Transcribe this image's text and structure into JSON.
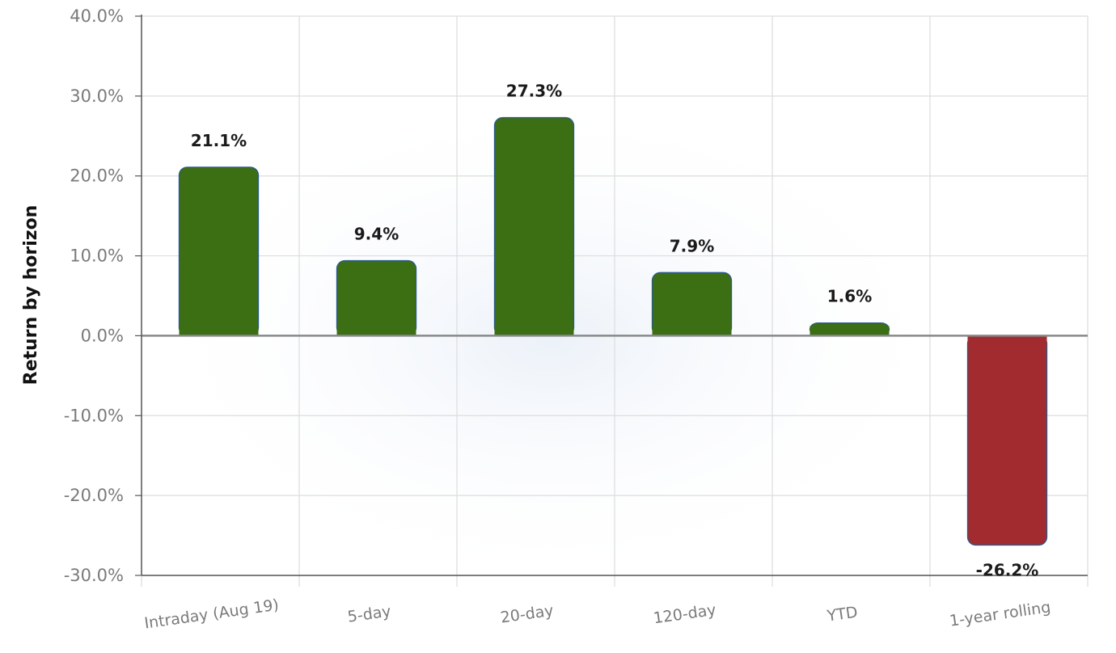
{
  "chart_data": {
    "type": "bar",
    "title": "",
    "xlabel": "",
    "ylabel": "Return by horizon",
    "categories": [
      "Intraday (Aug 19)",
      "5-day",
      "20-day",
      "120-day",
      "YTD",
      "1-year rolling"
    ],
    "values": [
      21.1,
      9.4,
      27.3,
      7.9,
      1.6,
      -26.2
    ],
    "value_labels": [
      "21.1%",
      "9.4%",
      "27.3%",
      "7.9%",
      "1.6%",
      "-26.2%"
    ],
    "ylim": [
      -30,
      40
    ],
    "yticks": [
      -30,
      -20,
      -10,
      0,
      10,
      20,
      30,
      40
    ],
    "ytick_labels": [
      "-30.0%",
      "-20.0%",
      "-10.0%",
      "0.0%",
      "10.0%",
      "20.0%",
      "30.0%",
      "40.0%"
    ],
    "grid": true,
    "legend": "none",
    "colors": {
      "positive": "#3c6e14",
      "negative": "#a12b2e",
      "bar_edge": "#2a5a8a",
      "grid": "#dddddd",
      "zero_line": "#888888",
      "axis": "#555555"
    }
  }
}
